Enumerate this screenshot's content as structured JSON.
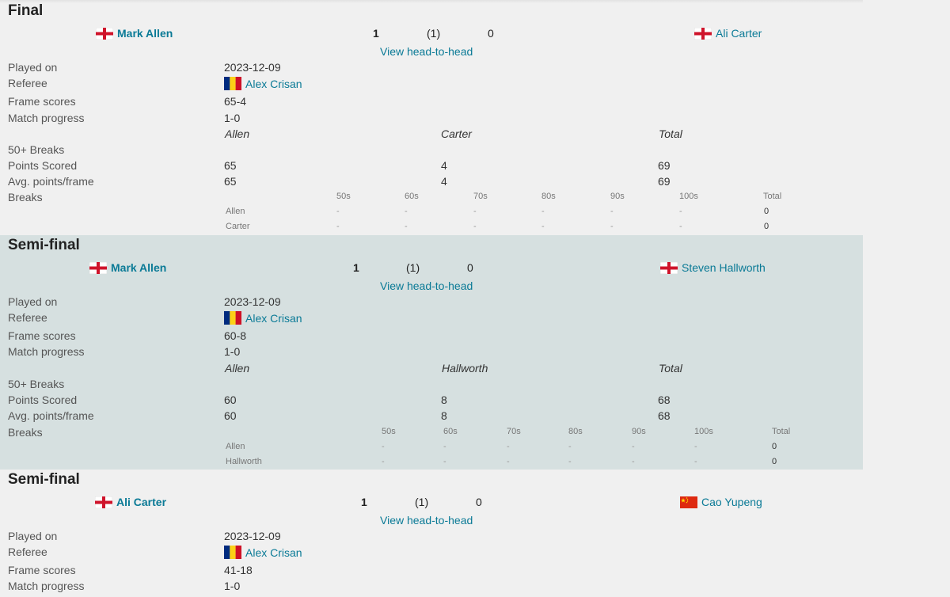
{
  "colors": {
    "link": "#0a7a96",
    "shaded_bg": "#d6e0e0",
    "page_bg": "#f0f0f0"
  },
  "labels": {
    "played_on": "Played on",
    "referee": "Referee",
    "frame_scores": "Frame scores",
    "match_progress": "Match progress",
    "breaks50": "50+ Breaks",
    "points_scored": "Points Scored",
    "avg_points": "Avg. points/frame",
    "breaks": "Breaks",
    "view_h2h": "View head-to-head",
    "total": "Total",
    "break_cols": [
      "50s",
      "60s",
      "70s",
      "80s",
      "90s",
      "100s",
      "Total"
    ]
  },
  "matches": [
    {
      "round": "Final",
      "player1": {
        "name": "Mark Allen",
        "flag": "england-flag-icon"
      },
      "player2": {
        "name": "Ali Carter",
        "flag": "england-flag-icon"
      },
      "score1": "1",
      "frames": "(1)",
      "score2": "0",
      "played_on": "2023-12-09",
      "referee": {
        "name": "Alex Crisan",
        "flag": "romania-flag-icon"
      },
      "frame_scores": "65-4",
      "match_progress": "1-0",
      "short1": "Allen",
      "short2": "Carter",
      "points": [
        "65",
        "4",
        "69"
      ],
      "avg": [
        "65",
        "4",
        "69"
      ],
      "break_rows": [
        {
          "name": "Allen",
          "cells": [
            "-",
            "-",
            "-",
            "-",
            "-",
            "-",
            "0"
          ]
        },
        {
          "name": "Carter",
          "cells": [
            "-",
            "-",
            "-",
            "-",
            "-",
            "-",
            "0"
          ]
        }
      ]
    },
    {
      "round": "Semi-final",
      "player1": {
        "name": "Mark Allen",
        "flag": "england-flag-icon"
      },
      "player2": {
        "name": "Steven Hallworth",
        "flag": "england-flag-icon"
      },
      "score1": "1",
      "frames": "(1)",
      "score2": "0",
      "played_on": "2023-12-09",
      "referee": {
        "name": "Alex Crisan",
        "flag": "romania-flag-icon"
      },
      "frame_scores": "60-8",
      "match_progress": "1-0",
      "short1": "Allen",
      "short2": "Hallworth",
      "points": [
        "60",
        "8",
        "68"
      ],
      "avg": [
        "60",
        "8",
        "68"
      ],
      "break_rows": [
        {
          "name": "Allen",
          "cells": [
            "-",
            "-",
            "-",
            "-",
            "-",
            "-",
            "0"
          ]
        },
        {
          "name": "Hallworth",
          "cells": [
            "-",
            "-",
            "-",
            "-",
            "-",
            "-",
            "0"
          ]
        }
      ]
    },
    {
      "round": "Semi-final",
      "player1": {
        "name": "Ali Carter",
        "flag": "england-flag-icon"
      },
      "player2": {
        "name": "Cao Yupeng",
        "flag": "china-flag-icon"
      },
      "score1": "1",
      "frames": "(1)",
      "score2": "0",
      "played_on": "2023-12-09",
      "referee": {
        "name": "Alex Crisan",
        "flag": "romania-flag-icon"
      },
      "frame_scores": "41-18",
      "match_progress": "1-0"
    }
  ]
}
